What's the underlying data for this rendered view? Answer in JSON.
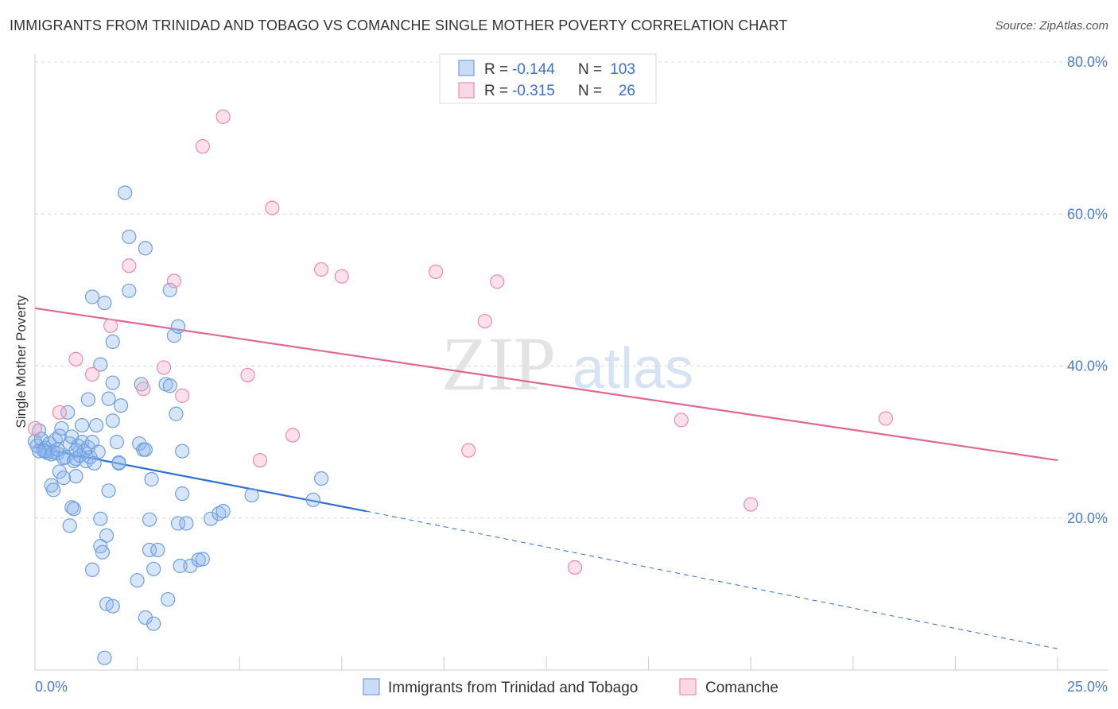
{
  "title": "IMMIGRANTS FROM TRINIDAD AND TOBAGO VS COMANCHE SINGLE MOTHER POVERTY CORRELATION CHART",
  "source": "Source: ZipAtlas.com",
  "watermark": {
    "zip": "ZIP",
    "atlas": "atlas"
  },
  "colors": {
    "blue": "#6fa0e0",
    "blue_fill": "rgba(140,180,235,0.35)",
    "blue_line": "#2f6fd0",
    "pink": "#f08aaa",
    "pink_fill": "rgba(245,170,195,0.35)",
    "pink_line": "#e06890"
  },
  "legend_top": {
    "rows": [
      {
        "r_label": "R =",
        "r_value": "-0.144",
        "n_label": "N =",
        "n_value": "103"
      },
      {
        "r_label": "R =",
        "r_value": "-0.315",
        "n_label": "N =",
        "n_value": "26"
      }
    ]
  },
  "chart_data": {
    "type": "scatter",
    "title": "IMMIGRANTS FROM TRINIDAD AND TOBAGO VS COMANCHE SINGLE MOTHER POVERTY CORRELATION CHART",
    "xlabel": "",
    "ylabel": "Single Mother Poverty",
    "xlim": [
      0,
      25
    ],
    "ylim": [
      0,
      80
    ],
    "x_tick_labels": [
      "0.0%",
      "25.0%"
    ],
    "y_tick_labels": [
      "20.0%",
      "40.0%",
      "60.0%",
      "80.0%"
    ],
    "y_ticks": [
      20,
      40,
      60,
      80
    ],
    "grid": true,
    "legend": "bottom-center",
    "series": [
      {
        "name": "Immigrants from Trinidad and Tobago",
        "color": "#6fa0e0",
        "trend": {
          "x0": 0,
          "y0": 29.3,
          "x1": 8.1,
          "y1": 20.9,
          "dash_to_x": 25,
          "dash_to_y": 2.8
        },
        "points": [
          [
            0.0,
            30.1
          ],
          [
            0.05,
            29.5
          ],
          [
            0.1,
            31.5
          ],
          [
            0.15,
            30.4
          ],
          [
            0.2,
            28.9
          ],
          [
            0.25,
            29.2
          ],
          [
            0.3,
            28.6
          ],
          [
            0.35,
            29.8
          ],
          [
            0.4,
            28.4
          ],
          [
            0.45,
            28.7
          ],
          [
            0.5,
            30.3
          ],
          [
            0.55,
            28.5
          ],
          [
            0.6,
            30.8
          ],
          [
            0.65,
            31.8
          ],
          [
            0.7,
            27.9
          ],
          [
            0.75,
            28.0
          ],
          [
            0.8,
            33.9
          ],
          [
            0.85,
            29.8
          ],
          [
            0.9,
            30.7
          ],
          [
            0.95,
            27.5
          ],
          [
            1.0,
            27.8
          ],
          [
            1.05,
            29.5
          ],
          [
            1.1,
            28.2
          ],
          [
            1.15,
            30.0
          ],
          [
            1.2,
            28.8
          ],
          [
            1.25,
            27.5
          ],
          [
            1.3,
            29.3
          ],
          [
            1.35,
            28.0
          ],
          [
            1.4,
            30.0
          ],
          [
            1.45,
            27.2
          ],
          [
            0.4,
            24.3
          ],
          [
            0.45,
            23.7
          ],
          [
            0.6,
            26.1
          ],
          [
            0.7,
            25.3
          ],
          [
            0.9,
            21.4
          ],
          [
            0.95,
            21.2
          ],
          [
            0.85,
            19.0
          ],
          [
            1.0,
            25.5
          ],
          [
            1.3,
            35.6
          ],
          [
            1.4,
            49.1
          ],
          [
            1.7,
            48.3
          ],
          [
            1.9,
            43.2
          ],
          [
            1.6,
            40.2
          ],
          [
            1.9,
            37.8
          ],
          [
            1.8,
            35.7
          ],
          [
            2.1,
            34.8
          ],
          [
            1.5,
            32.2
          ],
          [
            1.9,
            32.8
          ],
          [
            2.0,
            30.0
          ],
          [
            2.05,
            27.2
          ],
          [
            1.6,
            19.9
          ],
          [
            1.75,
            17.7
          ],
          [
            1.6,
            16.3
          ],
          [
            1.65,
            15.5
          ],
          [
            1.4,
            13.2
          ],
          [
            1.8,
            23.6
          ],
          [
            1.75,
            8.7
          ],
          [
            1.9,
            8.4
          ],
          [
            1.7,
            1.6
          ],
          [
            2.2,
            62.8
          ],
          [
            2.3,
            57.0
          ],
          [
            2.3,
            49.9
          ],
          [
            2.7,
            55.5
          ],
          [
            2.6,
            37.6
          ],
          [
            2.85,
            25.1
          ],
          [
            2.55,
            29.8
          ],
          [
            2.65,
            29.0
          ],
          [
            2.8,
            19.8
          ],
          [
            2.8,
            15.8
          ],
          [
            3.0,
            15.8
          ],
          [
            2.5,
            11.8
          ],
          [
            2.9,
            13.3
          ],
          [
            2.7,
            6.9
          ],
          [
            2.9,
            6.1
          ],
          [
            3.25,
            9.3
          ],
          [
            3.2,
            37.6
          ],
          [
            3.3,
            37.4
          ],
          [
            3.3,
            50.0
          ],
          [
            3.4,
            44.0
          ],
          [
            3.5,
            45.2
          ],
          [
            3.45,
            33.7
          ],
          [
            3.6,
            28.8
          ],
          [
            3.6,
            23.2
          ],
          [
            3.5,
            19.3
          ],
          [
            3.7,
            19.3
          ],
          [
            3.55,
            13.7
          ],
          [
            3.8,
            13.7
          ],
          [
            4.0,
            14.5
          ],
          [
            4.1,
            14.6
          ],
          [
            4.3,
            19.9
          ],
          [
            4.5,
            20.6
          ],
          [
            4.6,
            20.9
          ],
          [
            5.3,
            23.0
          ],
          [
            6.8,
            22.4
          ],
          [
            7.0,
            25.2
          ],
          [
            2.05,
            27.3
          ],
          [
            1.55,
            28.7
          ],
          [
            1.15,
            32.2
          ],
          [
            0.25,
            28.8
          ],
          [
            0.55,
            29.0
          ],
          [
            1.0,
            28.9
          ],
          [
            2.7,
            29.0
          ],
          [
            0.1,
            28.8
          ]
        ]
      },
      {
        "name": "Comanche",
        "color": "#f08aaa",
        "trend": {
          "x0": 0,
          "y0": 47.6,
          "x1": 25,
          "y1": 27.6
        },
        "points": [
          [
            0.0,
            31.8
          ],
          [
            0.6,
            33.9
          ],
          [
            1.0,
            40.9
          ],
          [
            1.4,
            38.9
          ],
          [
            1.85,
            45.3
          ],
          [
            2.3,
            53.2
          ],
          [
            2.65,
            37.0
          ],
          [
            3.15,
            39.8
          ],
          [
            3.4,
            51.2
          ],
          [
            3.6,
            36.1
          ],
          [
            4.1,
            68.9
          ],
          [
            4.6,
            72.8
          ],
          [
            5.2,
            38.8
          ],
          [
            5.5,
            27.6
          ],
          [
            5.8,
            60.8
          ],
          [
            6.3,
            30.9
          ],
          [
            7.0,
            52.7
          ],
          [
            7.5,
            51.8
          ],
          [
            9.8,
            52.4
          ],
          [
            10.6,
            28.9
          ],
          [
            11.0,
            45.9
          ],
          [
            11.3,
            51.1
          ],
          [
            13.2,
            13.5
          ],
          [
            15.8,
            32.9
          ],
          [
            17.5,
            21.8
          ],
          [
            20.8,
            33.1
          ]
        ]
      }
    ]
  }
}
